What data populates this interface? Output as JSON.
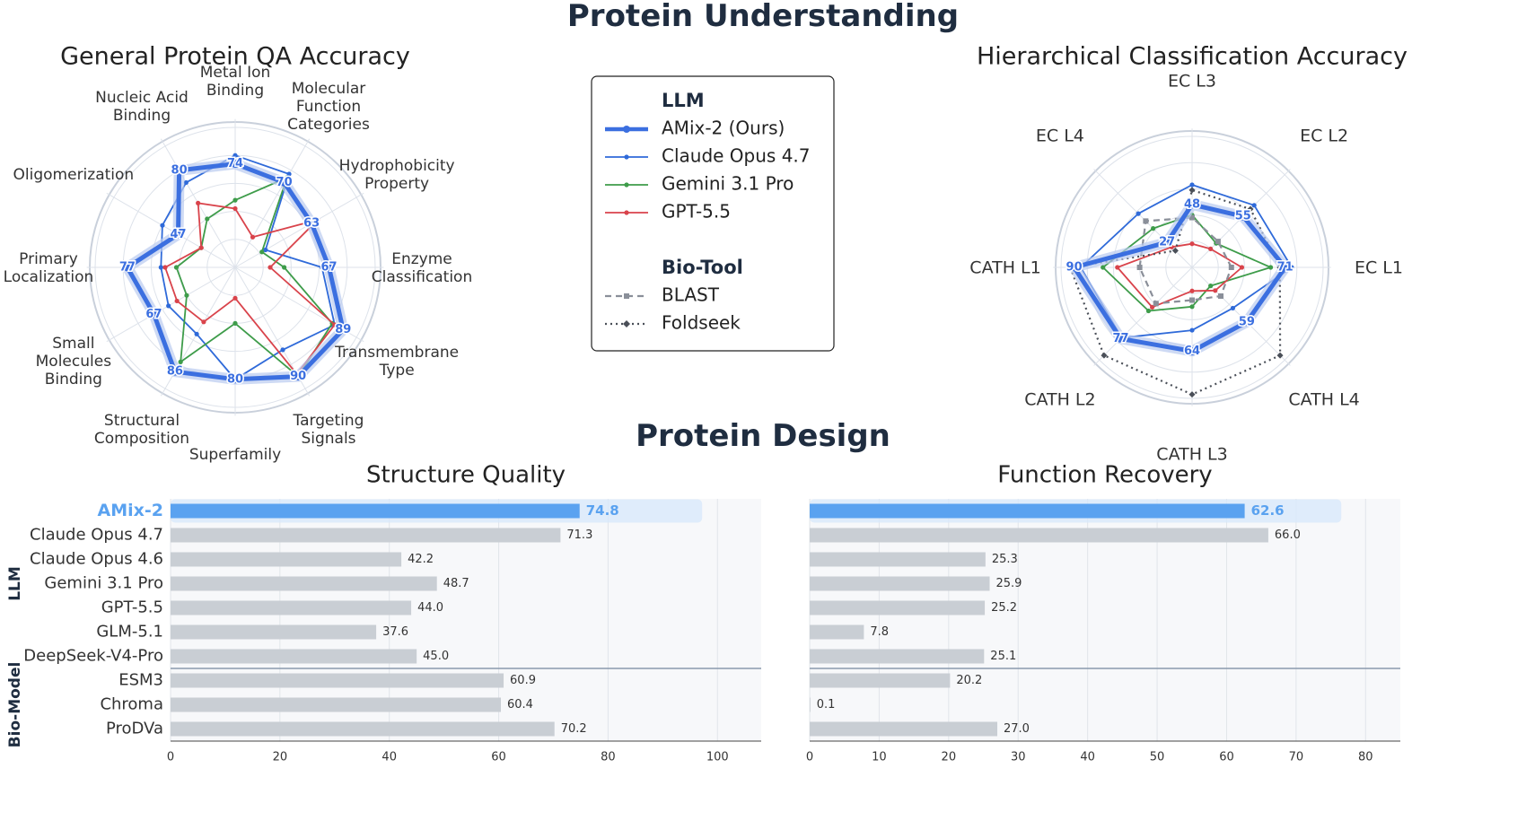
{
  "sections": {
    "understanding": "Protein Understanding",
    "design": "Protein Design"
  },
  "chart_data": [
    {
      "type": "radar",
      "title": "General Protein QA Accuracy",
      "axes": [
        "Metal Ion Binding",
        "Molecular Function Categories",
        "Hydrophobicity Property",
        "Enzyme Classification",
        "Transmembrane Type",
        "Targeting Signals",
        "Superfamily",
        "Structural Composition",
        "Small Molecules Binding",
        "Primary Localization",
        "Oligomerization",
        "Nucleic Acid Binding"
      ],
      "axis_label_lines": [
        [
          "Metal Ion",
          "Binding"
        ],
        [
          "Molecular",
          "Function",
          "Categories"
        ],
        [
          "Hydrophobicity",
          "Property"
        ],
        [
          "Enzyme",
          "Classification"
        ],
        [
          "Transmembrane",
          "Type"
        ],
        [
          "Targeting",
          "Signals"
        ],
        [
          "Superfamily"
        ],
        [
          "Structural",
          "Composition"
        ],
        [
          "Small",
          "Molecules",
          "Binding"
        ],
        [
          "Primary",
          "Localization"
        ],
        [
          "Oligomerization"
        ],
        [
          "Nucleic Acid",
          "Binding"
        ]
      ],
      "range": [
        0,
        100
      ],
      "grid": true,
      "series": [
        {
          "name": "AMix-2 (Ours)",
          "values": [
            74,
            70,
            63,
            67,
            89,
            90,
            80,
            86,
            67,
            77,
            47,
            80
          ],
          "labeled": true
        },
        {
          "name": "Claude Opus 4.7",
          "values": [
            80,
            77,
            25,
            62,
            82,
            68,
            80,
            55,
            55,
            53,
            60,
            70
          ]
        },
        {
          "name": "Gemini 3.1 Pro",
          "values": [
            48,
            74,
            22,
            35,
            80,
            90,
            40,
            78,
            40,
            42,
            28,
            40
          ]
        },
        {
          "name": "GPT-5.5",
          "values": [
            42,
            25,
            68,
            25,
            82,
            88,
            22,
            45,
            48,
            50,
            28,
            53
          ]
        }
      ]
    },
    {
      "type": "radar",
      "title": "Hierarchical Classification Accuracy",
      "axes": [
        "EC L1",
        "EC L2",
        "EC L3",
        "EC L4",
        "CATH L1",
        "CATH L2",
        "CATH L3",
        "CATH L4"
      ],
      "range": [
        0,
        100
      ],
      "grid": true,
      "series": [
        {
          "name": "AMix-2 (Ours)",
          "values": [
            71,
            55,
            48,
            27,
            90,
            77,
            64,
            59
          ],
          "labeled": true
        },
        {
          "name": "Claude Opus 4.7",
          "values": [
            76,
            67,
            63,
            58,
            85,
            76,
            48,
            44
          ]
        },
        {
          "name": "Gemini 3.1 Pro",
          "values": [
            60,
            26,
            40,
            42,
            68,
            47,
            30,
            20
          ]
        },
        {
          "name": "GPT-5.5",
          "values": [
            38,
            20,
            18,
            22,
            57,
            43,
            18,
            25
          ]
        },
        {
          "name": "BLAST",
          "values": [
            30,
            28,
            38,
            50,
            40,
            39,
            25,
            31
          ]
        },
        {
          "name": "Foldseek",
          "values": [
            67,
            63,
            59,
            18,
            93,
            95,
            97,
            95
          ]
        }
      ]
    },
    {
      "type": "bar",
      "orientation": "horizontal",
      "title": "Structure Quality",
      "categories": [
        "AMix-2",
        "Claude Opus 4.7",
        "Claude Opus 4.6",
        "Gemini 3.1 Pro",
        "GPT-5.5",
        "GLM-5.1",
        "DeepSeek-V4-Pro",
        "ESM3",
        "Chroma",
        "ProDVa"
      ],
      "values": [
        74.8,
        71.3,
        42.2,
        48.7,
        44.0,
        37.6,
        45.0,
        60.9,
        60.4,
        70.2
      ],
      "value_labels": [
        "74.8",
        "71.3",
        "42.2",
        "48.7",
        "44.0",
        "37.6",
        "45.0",
        "60.9",
        "60.4",
        "70.2"
      ],
      "xlim": [
        0,
        108
      ],
      "xticks": [
        0,
        20,
        40,
        60,
        80,
        100
      ],
      "highlight": "AMix-2",
      "groups": [
        {
          "name": "LLM",
          "categories": 7
        },
        {
          "name": "Bio-Model",
          "categories": 3
        }
      ],
      "grid": true
    },
    {
      "type": "bar",
      "orientation": "horizontal",
      "title": "Function Recovery",
      "categories": [
        "AMix-2",
        "Claude Opus 4.7",
        "Claude Opus 4.6",
        "Gemini 3.1 Pro",
        "GPT-5.5",
        "GLM-5.1",
        "DeepSeek-V4-Pro",
        "ESM3",
        "Chroma",
        "ProDVa"
      ],
      "values": [
        62.6,
        66.0,
        25.3,
        25.9,
        25.2,
        7.8,
        25.1,
        20.2,
        0.1,
        27.0
      ],
      "value_labels": [
        "62.6",
        "66.0",
        "25.3",
        "25.9",
        "25.2",
        "7.8",
        "25.1",
        "20.2",
        "0.1",
        "27.0"
      ],
      "xlim": [
        0,
        85
      ],
      "xticks": [
        0,
        10,
        20,
        30,
        40,
        50,
        60,
        70,
        80
      ],
      "highlight": "AMix-2",
      "grid": true
    }
  ],
  "legend": {
    "placement": "top-center",
    "llm_title": "LLM",
    "biotool_title": "Bio-Tool",
    "llm_entries": [
      "AMix-2 (Ours)",
      "Claude Opus 4.7",
      "Gemini 3.1 Pro",
      "GPT-5.5"
    ],
    "biotool_entries": [
      "BLAST",
      "Foldseek"
    ]
  },
  "colors": {
    "AMix-2 (Ours)": "#3b6fe0",
    "Claude Opus 4.7": "#2f6ad9",
    "Gemini 3.1 Pro": "#3e9c4a",
    "GPT-5.5": "#d9434b",
    "BLAST": "#8a8f99",
    "Foldseek": "#4a4f58",
    "highlight_bar": "#5aa2f0",
    "bar": "#c9ced4",
    "title": "#1f2d40"
  }
}
